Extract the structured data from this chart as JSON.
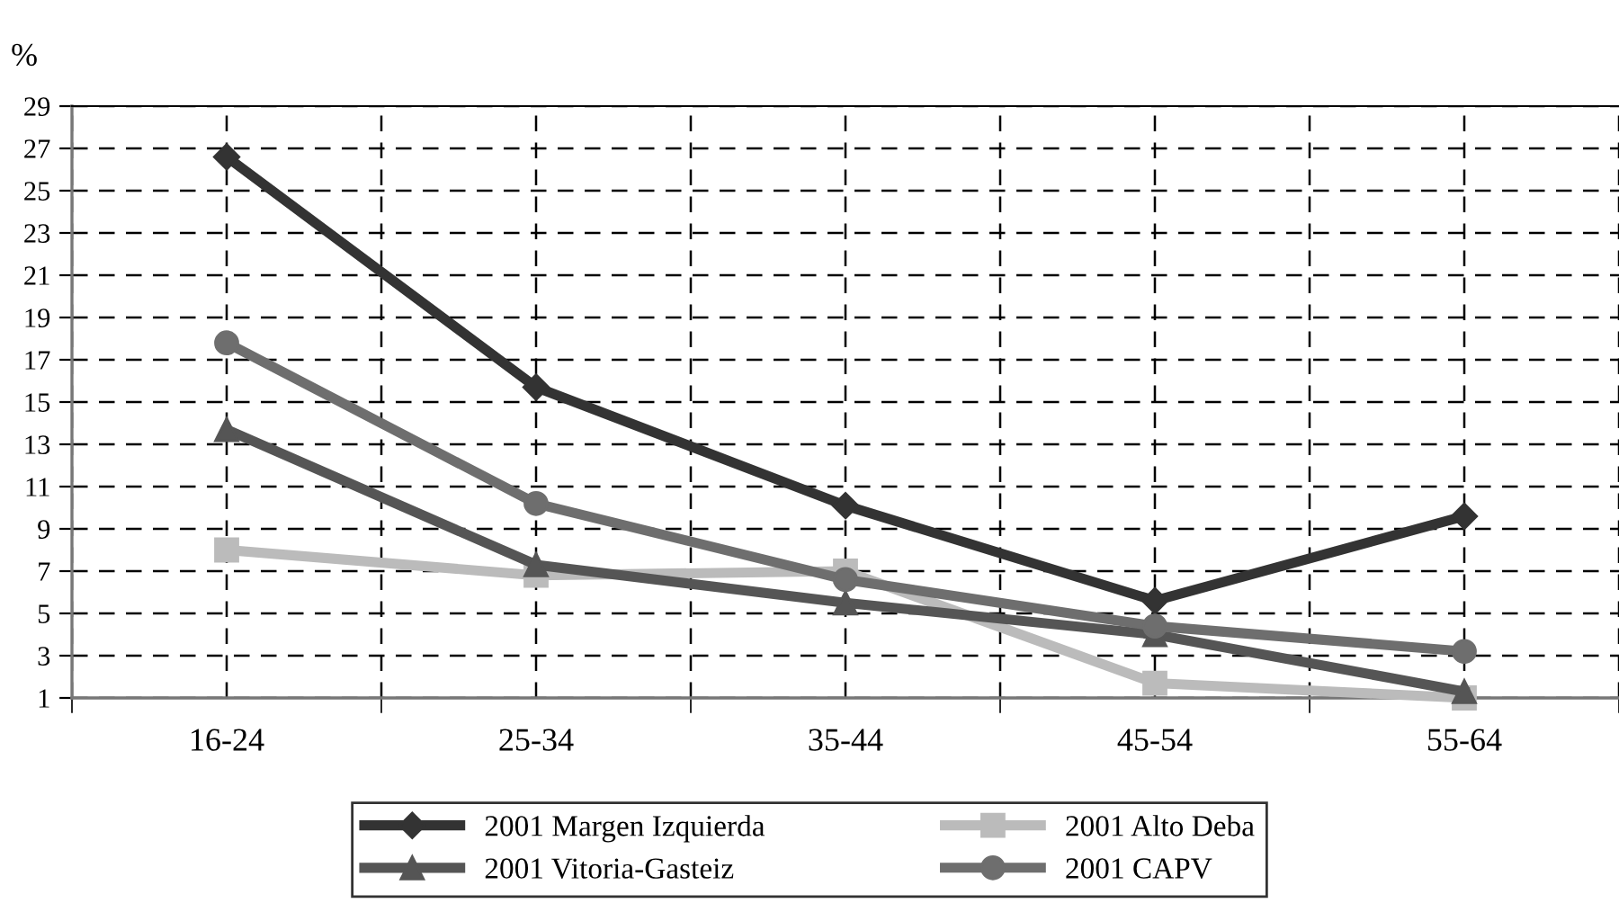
{
  "chart_data": {
    "type": "line",
    "ylabel": "%",
    "categories": [
      "16-24",
      "25-34",
      "35-44",
      "45-54",
      "55-64"
    ],
    "series": [
      {
        "name": "2001 Margen Izquierda",
        "color": "#333333",
        "marker": "diamond",
        "values": [
          26.6,
          15.7,
          10.1,
          5.6,
          9.6
        ]
      },
      {
        "name": "2001 Alto Deba",
        "color": "#bbbbbb",
        "marker": "square",
        "values": [
          8.0,
          6.8,
          7.0,
          1.7,
          1.0
        ]
      },
      {
        "name": "2001 Vitoria-Gasteiz",
        "color": "#555555",
        "marker": "triangle",
        "values": [
          13.7,
          7.3,
          5.5,
          4.0,
          1.3
        ]
      },
      {
        "name": "2001 CAPV",
        "color": "#6e6e6e",
        "marker": "circle",
        "values": [
          17.8,
          10.2,
          6.6,
          4.4,
          3.2
        ]
      }
    ],
    "ylim": [
      1,
      29
    ],
    "yticks": [
      1,
      3,
      5,
      7,
      9,
      11,
      13,
      15,
      17,
      19,
      21,
      23,
      25,
      27,
      29
    ],
    "grid": true,
    "legend": "bottom",
    "line_style": "solid"
  }
}
